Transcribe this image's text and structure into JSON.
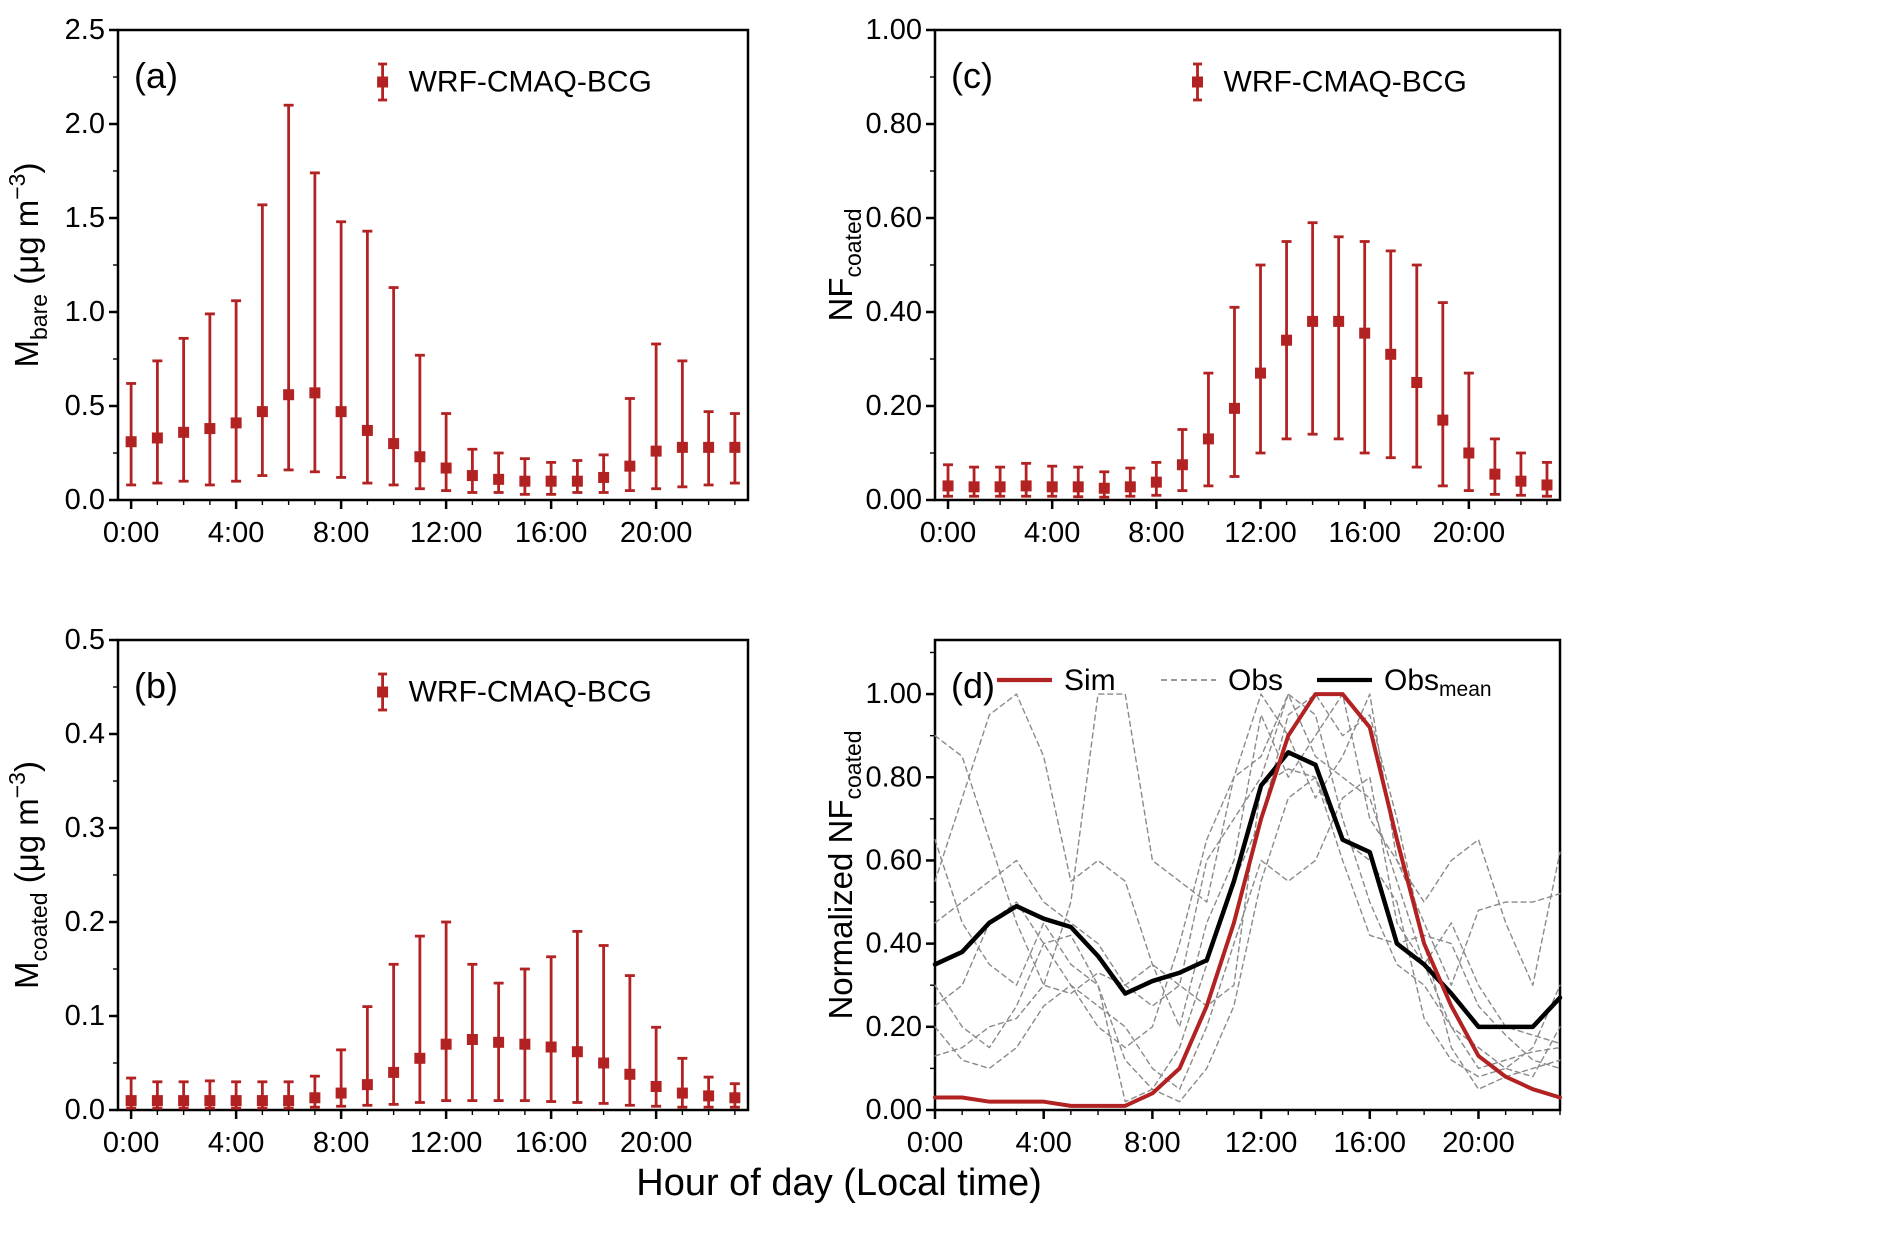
{
  "figure": {
    "bottom_xlabel": "Hour of day (Local time)",
    "colors": {
      "accent_red": "#b22222",
      "obs_gray": "#8a8a8a",
      "axis_black": "#000000"
    }
  },
  "chart_data": [
    {
      "id": "a",
      "type": "errorbar",
      "panel_label": "(a)",
      "legend_label": "WRF-CMAQ-BCG",
      "ylabel_parts": [
        {
          "t": "M"
        },
        {
          "t": "bare",
          "s": "sub"
        },
        {
          "t": " (μg m"
        },
        {
          "t": "−3",
          "s": "sup"
        },
        {
          "t": ")"
        }
      ],
      "xlim": [
        -0.5,
        23.5
      ],
      "ylim": [
        0,
        2.5
      ],
      "xticks": {
        "values": [
          0,
          4,
          8,
          12,
          16,
          20
        ],
        "labels": [
          "0:00",
          "4:00",
          "8:00",
          "12:00",
          "16:00",
          "20:00"
        ]
      },
      "yticks": {
        "values": [
          0,
          0.5,
          1.0,
          1.5,
          2.0,
          2.5
        ],
        "labels": [
          "0.0",
          "0.5",
          "1.0",
          "1.5",
          "2.0",
          "2.5"
        ]
      },
      "hours": [
        0,
        1,
        2,
        3,
        4,
        5,
        6,
        7,
        8,
        9,
        10,
        11,
        12,
        13,
        14,
        15,
        16,
        17,
        18,
        19,
        20,
        21,
        22,
        23
      ],
      "mean": [
        0.31,
        0.33,
        0.36,
        0.38,
        0.41,
        0.47,
        0.56,
        0.57,
        0.47,
        0.37,
        0.3,
        0.23,
        0.17,
        0.13,
        0.11,
        0.1,
        0.1,
        0.1,
        0.12,
        0.18,
        0.26,
        0.28,
        0.28,
        0.28
      ],
      "lo": [
        0.08,
        0.09,
        0.1,
        0.08,
        0.1,
        0.13,
        0.16,
        0.15,
        0.12,
        0.09,
        0.08,
        0.06,
        0.05,
        0.04,
        0.04,
        0.03,
        0.03,
        0.04,
        0.04,
        0.05,
        0.06,
        0.07,
        0.08,
        0.09
      ],
      "hi": [
        0.62,
        0.74,
        0.86,
        0.99,
        1.06,
        1.57,
        2.1,
        1.74,
        1.48,
        1.43,
        1.13,
        0.77,
        0.46,
        0.27,
        0.25,
        0.22,
        0.2,
        0.21,
        0.24,
        0.54,
        0.83,
        0.74,
        0.47,
        0.46
      ]
    },
    {
      "id": "c",
      "type": "errorbar",
      "panel_label": "(c)",
      "legend_label": "WRF-CMAQ-BCG",
      "ylabel_parts": [
        {
          "t": "NF"
        },
        {
          "t": "coated",
          "s": "sub"
        }
      ],
      "xlim": [
        -0.5,
        23.5
      ],
      "ylim": [
        0,
        1.0
      ],
      "xticks": {
        "values": [
          0,
          4,
          8,
          12,
          16,
          20
        ],
        "labels": [
          "0:00",
          "4:00",
          "8:00",
          "12:00",
          "16:00",
          "20:00"
        ]
      },
      "yticks": {
        "values": [
          0,
          0.2,
          0.4,
          0.6,
          0.8,
          1.0
        ],
        "labels": [
          "0.00",
          "0.20",
          "0.40",
          "0.60",
          "0.80",
          "1.00"
        ]
      },
      "hours": [
        0,
        1,
        2,
        3,
        4,
        5,
        6,
        7,
        8,
        9,
        10,
        11,
        12,
        13,
        14,
        15,
        16,
        17,
        18,
        19,
        20,
        21,
        22,
        23
      ],
      "mean": [
        0.03,
        0.028,
        0.028,
        0.03,
        0.028,
        0.028,
        0.025,
        0.028,
        0.038,
        0.075,
        0.13,
        0.195,
        0.27,
        0.34,
        0.38,
        0.38,
        0.355,
        0.31,
        0.25,
        0.17,
        0.1,
        0.055,
        0.04,
        0.032
      ],
      "lo": [
        0.008,
        0.008,
        0.008,
        0.008,
        0.008,
        0.007,
        0.006,
        0.008,
        0.01,
        0.02,
        0.03,
        0.05,
        0.1,
        0.13,
        0.14,
        0.13,
        0.1,
        0.09,
        0.07,
        0.03,
        0.02,
        0.012,
        0.01,
        0.008
      ],
      "hi": [
        0.075,
        0.07,
        0.07,
        0.078,
        0.072,
        0.07,
        0.06,
        0.068,
        0.08,
        0.15,
        0.27,
        0.41,
        0.5,
        0.55,
        0.59,
        0.56,
        0.55,
        0.53,
        0.5,
        0.42,
        0.27,
        0.13,
        0.1,
        0.08
      ]
    },
    {
      "id": "b",
      "type": "errorbar",
      "panel_label": "(b)",
      "legend_label": "WRF-CMAQ-BCG",
      "ylabel_parts": [
        {
          "t": "M"
        },
        {
          "t": "coated",
          "s": "sub"
        },
        {
          "t": " (μg m"
        },
        {
          "t": "−3",
          "s": "sup"
        },
        {
          "t": ")"
        }
      ],
      "xlim": [
        -0.5,
        23.5
      ],
      "ylim": [
        0,
        0.5
      ],
      "xticks": {
        "values": [
          0,
          4,
          8,
          12,
          16,
          20
        ],
        "labels": [
          "0:00",
          "4:00",
          "8:00",
          "12:00",
          "16:00",
          "20:00"
        ]
      },
      "yticks": {
        "values": [
          0,
          0.1,
          0.2,
          0.3,
          0.4,
          0.5
        ],
        "labels": [
          "0.0",
          "0.1",
          "0.2",
          "0.3",
          "0.4",
          "0.5"
        ]
      },
      "hours": [
        0,
        1,
        2,
        3,
        4,
        5,
        6,
        7,
        8,
        9,
        10,
        11,
        12,
        13,
        14,
        15,
        16,
        17,
        18,
        19,
        20,
        21,
        22,
        23
      ],
      "mean": [
        0.01,
        0.01,
        0.01,
        0.01,
        0.01,
        0.01,
        0.01,
        0.013,
        0.018,
        0.027,
        0.04,
        0.055,
        0.07,
        0.075,
        0.072,
        0.07,
        0.067,
        0.062,
        0.05,
        0.038,
        0.025,
        0.018,
        0.015,
        0.013
      ],
      "lo": [
        0.002,
        0.002,
        0.002,
        0.002,
        0.002,
        0.002,
        0.002,
        0.003,
        0.004,
        0.005,
        0.006,
        0.008,
        0.01,
        0.01,
        0.01,
        0.01,
        0.009,
        0.008,
        0.007,
        0.005,
        0.004,
        0.003,
        0.003,
        0.003
      ],
      "hi": [
        0.034,
        0.03,
        0.03,
        0.031,
        0.03,
        0.03,
        0.03,
        0.036,
        0.064,
        0.11,
        0.155,
        0.185,
        0.2,
        0.155,
        0.135,
        0.15,
        0.163,
        0.19,
        0.175,
        0.143,
        0.088,
        0.055,
        0.035,
        0.028
      ]
    },
    {
      "id": "d",
      "type": "line",
      "panel_label": "(d)",
      "ylabel_parts": [
        {
          "t": "Normalized NF"
        },
        {
          "t": "coated",
          "s": "sub"
        }
      ],
      "xlim": [
        0,
        23
      ],
      "ylim": [
        0,
        1.13
      ],
      "xticks": {
        "values": [
          0,
          4,
          8,
          12,
          16,
          20
        ],
        "labels": [
          "0:00",
          "4:00",
          "8:00",
          "12:00",
          "16:00",
          "20:00"
        ]
      },
      "yticks": {
        "values": [
          0,
          0.2,
          0.4,
          0.6,
          0.8,
          1.0
        ],
        "labels": [
          "0.00",
          "0.20",
          "0.40",
          "0.60",
          "0.80",
          "1.00"
        ]
      },
      "hours": [
        0,
        1,
        2,
        3,
        4,
        5,
        6,
        7,
        8,
        9,
        10,
        11,
        12,
        13,
        14,
        15,
        16,
        17,
        18,
        19,
        20,
        21,
        22,
        23
      ],
      "legend": [
        {
          "label": "Sim",
          "style": "solid",
          "color_key": "accent_red"
        },
        {
          "label": "Obs",
          "style": "dashed",
          "color_key": "obs_gray"
        },
        {
          "label": "Obs",
          "sub": "mean",
          "style": "solid",
          "color_key": "axis_black"
        }
      ],
      "sim": [
        0.03,
        0.03,
        0.02,
        0.02,
        0.02,
        0.01,
        0.01,
        0.01,
        0.04,
        0.1,
        0.25,
        0.45,
        0.7,
        0.9,
        1.0,
        1.0,
        0.92,
        0.65,
        0.4,
        0.25,
        0.13,
        0.08,
        0.05,
        0.03
      ],
      "obs_mean": [
        0.35,
        0.38,
        0.45,
        0.49,
        0.46,
        0.44,
        0.37,
        0.28,
        0.31,
        0.33,
        0.36,
        0.55,
        0.78,
        0.86,
        0.83,
        0.65,
        0.62,
        0.4,
        0.35,
        0.28,
        0.2,
        0.2,
        0.2,
        0.27
      ],
      "obs_series": [
        [
          0.9,
          0.85,
          0.65,
          0.45,
          0.3,
          0.28,
          0.33,
          0.3,
          0.25,
          0.3,
          0.6,
          0.7,
          0.8,
          1.0,
          0.85,
          0.8,
          0.75,
          0.55,
          0.35,
          0.2,
          0.1,
          0.12,
          0.14,
          0.15
        ],
        [
          0.55,
          0.75,
          0.95,
          1.0,
          0.85,
          0.55,
          0.6,
          0.55,
          0.35,
          0.2,
          0.45,
          0.6,
          0.95,
          0.8,
          0.9,
          1.0,
          0.7,
          0.6,
          0.45,
          0.3,
          0.48,
          0.5,
          0.5,
          0.52
        ],
        [
          0.3,
          0.2,
          0.15,
          0.25,
          0.4,
          0.42,
          0.3,
          0.12,
          0.05,
          0.02,
          0.1,
          0.25,
          0.55,
          0.75,
          0.8,
          0.6,
          0.42,
          0.4,
          0.42,
          0.4,
          0.25,
          0.18,
          0.12,
          0.1
        ],
        [
          0.13,
          0.15,
          0.2,
          0.22,
          0.3,
          0.5,
          1.0,
          1.0,
          0.6,
          0.55,
          0.5,
          0.8,
          1.0,
          0.9,
          0.75,
          0.85,
          1.0,
          0.6,
          0.5,
          0.6,
          0.65,
          0.45,
          0.3,
          0.62
        ],
        [
          0.65,
          0.45,
          0.35,
          0.3,
          0.45,
          0.35,
          0.3,
          0.02,
          0.05,
          0.15,
          0.35,
          0.55,
          0.7,
          0.95,
          1.0,
          0.9,
          0.95,
          0.7,
          0.4,
          0.15,
          0.05,
          0.08,
          0.1,
          0.12
        ],
        [
          0.25,
          0.3,
          0.45,
          0.5,
          0.4,
          0.3,
          0.2,
          0.15,
          0.2,
          0.4,
          0.65,
          0.8,
          0.85,
          1.0,
          0.95,
          0.7,
          0.5,
          0.35,
          0.3,
          0.2,
          0.15,
          0.1,
          0.08,
          0.2
        ],
        [
          0.45,
          0.5,
          0.55,
          0.6,
          0.5,
          0.45,
          0.4,
          0.3,
          0.35,
          0.3,
          0.25,
          0.3,
          0.78,
          0.82,
          0.8,
          0.65,
          0.6,
          0.5,
          0.22,
          0.12,
          0.08,
          0.1,
          0.15,
          0.3
        ],
        [
          0.2,
          0.12,
          0.1,
          0.15,
          0.25,
          0.3,
          0.25,
          0.2,
          0.1,
          0.05,
          0.2,
          0.4,
          0.6,
          0.55,
          0.6,
          0.75,
          0.8,
          0.45,
          0.35,
          0.45,
          0.3,
          0.2,
          0.18,
          0.16
        ]
      ]
    }
  ]
}
